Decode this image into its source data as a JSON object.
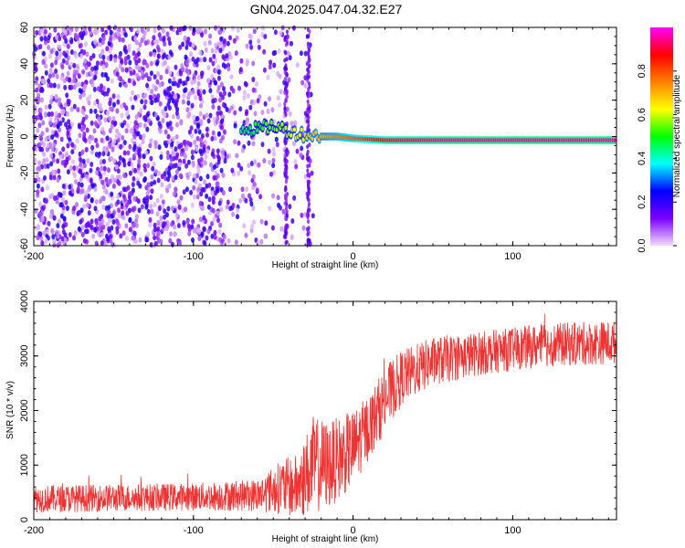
{
  "title": "GN04.2025.047.04.32.E27",
  "chart_data": [
    {
      "type": "heatmap",
      "xlabel": "Height of straight line (km)",
      "ylabel": "Frequency (Hz)",
      "xlim": [
        -200,
        165
      ],
      "ylim": [
        -60,
        60
      ],
      "xticks": [
        -200,
        -100,
        0,
        100
      ],
      "yticks": [
        -60,
        -40,
        -20,
        0,
        20,
        40,
        60
      ],
      "colorbar": {
        "label": "Normalized spectral amplitude",
        "range": [
          0.0,
          1.0
        ],
        "ticks": [
          0.0,
          0.2,
          0.4,
          0.6,
          0.8
        ],
        "colormap": [
          "#f2ddff",
          "#7a00ff",
          "#0000ff",
          "#00ffff",
          "#00ff00",
          "#ffff00",
          "#ff8000",
          "#ff0000",
          "#ff00ff"
        ]
      },
      "description_data": {
        "noise_region_x": [
          -200,
          -25
        ],
        "noise_amplitude": 0.2,
        "signal_track": [
          {
            "x": -70,
            "y": 5,
            "amp": 0.45
          },
          {
            "x": -60,
            "y": 4,
            "amp": 0.5
          },
          {
            "x": -50,
            "y": 6,
            "amp": 0.55
          },
          {
            "x": -40,
            "y": 3,
            "amp": 0.6
          },
          {
            "x": -30,
            "y": 1,
            "amp": 0.65
          },
          {
            "x": -20,
            "y": 0,
            "amp": 0.7
          },
          {
            "x": -10,
            "y": 0,
            "amp": 0.75
          },
          {
            "x": 0,
            "y": -1,
            "amp": 0.8
          },
          {
            "x": 20,
            "y": -2,
            "amp": 0.9
          },
          {
            "x": 60,
            "y": -2,
            "amp": 0.95
          },
          {
            "x": 100,
            "y": -2,
            "amp": 0.95
          },
          {
            "x": 165,
            "y": -2,
            "amp": 0.95
          }
        ]
      }
    },
    {
      "type": "line",
      "xlabel": "Height of straight line (km)",
      "ylabel": "SNR (10 * v/v)",
      "xlim": [
        -200,
        165
      ],
      "ylim": [
        0,
        4000
      ],
      "xticks": [
        -200,
        -100,
        0,
        100
      ],
      "yticks": [
        0,
        1000,
        2000,
        3000,
        4000
      ],
      "series": [
        {
          "color": "#ee3333",
          "envelope": [
            {
              "x": -200,
              "mean": 380,
              "spread": 250
            },
            {
              "x": -150,
              "mean": 400,
              "spread": 250
            },
            {
              "x": -100,
              "mean": 420,
              "spread": 250
            },
            {
              "x": -60,
              "mean": 450,
              "spread": 300
            },
            {
              "x": -45,
              "mean": 600,
              "spread": 500
            },
            {
              "x": -35,
              "mean": 600,
              "spread": 600
            },
            {
              "x": -25,
              "mean": 1000,
              "spread": 900
            },
            {
              "x": -15,
              "mean": 1000,
              "spread": 800
            },
            {
              "x": 0,
              "mean": 1300,
              "spread": 700
            },
            {
              "x": 10,
              "mean": 1700,
              "spread": 600
            },
            {
              "x": 20,
              "mean": 2200,
              "spread": 600
            },
            {
              "x": 30,
              "mean": 2600,
              "spread": 500
            },
            {
              "x": 50,
              "mean": 2900,
              "spread": 450
            },
            {
              "x": 80,
              "mean": 3050,
              "spread": 400
            },
            {
              "x": 120,
              "mean": 3200,
              "spread": 400
            },
            {
              "x": 165,
              "mean": 3250,
              "spread": 400
            }
          ]
        }
      ]
    }
  ]
}
